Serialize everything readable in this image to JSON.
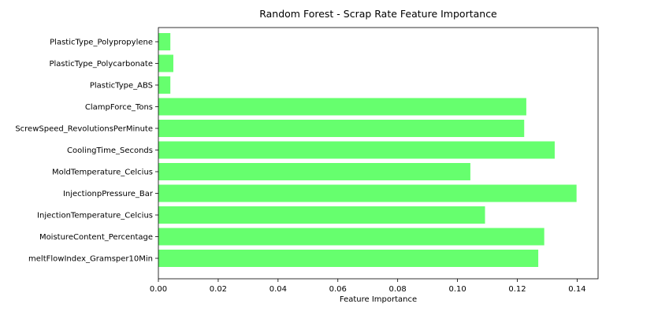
{
  "chart_data": {
    "type": "bar",
    "orientation": "horizontal",
    "title": "Random Forest - Scrap Rate Feature Importance",
    "xlabel": "Feature Importance",
    "ylabel": "",
    "xlim": [
      0.0,
      0.147
    ],
    "xticks": [
      "0.00",
      "0.02",
      "0.04",
      "0.06",
      "0.08",
      "0.10",
      "0.12",
      "0.14"
    ],
    "grid": false,
    "bar_color": "#66ff6e",
    "categories": [
      "PlasticType_Polypropylene",
      "PlasticType_Polycarbonate",
      "PlasticType_ABS",
      "ClampForce_Tons",
      "ScrewSpeed_RevolutionsPerMinute",
      "CoolingTime_Seconds",
      "MoldTemperature_Celcius",
      "InjectionpPressure_Bar",
      "InjectionTemperature_Celcius",
      "MoistureContent_Percentage",
      "meltFlowIndex_Gramsper10Min"
    ],
    "values": [
      0.004,
      0.005,
      0.004,
      0.123,
      0.1223,
      0.1325,
      0.1043,
      0.1398,
      0.1092,
      0.129,
      0.127
    ]
  }
}
